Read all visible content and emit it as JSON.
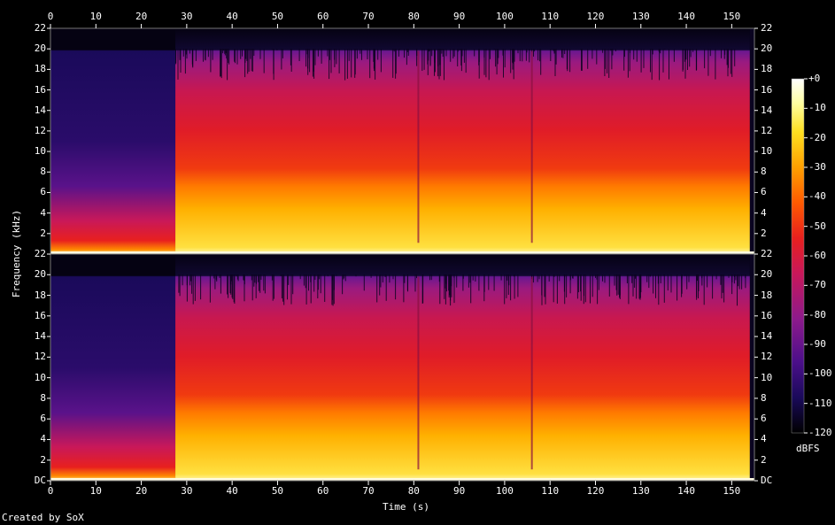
{
  "chart_data": {
    "type": "heatmap",
    "x": {
      "label": "Time (s)",
      "ticks": [
        0,
        10,
        20,
        30,
        40,
        50,
        60,
        70,
        80,
        90,
        100,
        110,
        120,
        130,
        140,
        150
      ],
      "range": [
        0,
        155
      ]
    },
    "y": {
      "label": "Frequency (kHz)",
      "ticks_top": [
        "22",
        "20",
        "18",
        "16",
        "14",
        "12",
        "10",
        "8",
        "6",
        "4",
        "2"
      ],
      "ticks_bottom": [
        "22",
        "20",
        "18",
        "16",
        "14",
        "12",
        "10",
        "8",
        "6",
        "4",
        "2",
        "DC"
      ],
      "range": [
        0,
        22
      ]
    },
    "channels": 2,
    "colorbar": {
      "label": "dBFS",
      "ticks": [
        "+0",
        "-10",
        "-20",
        "-30",
        "-40",
        "-50",
        "-60",
        "-70",
        "-80",
        "-90",
        "-100",
        "-110",
        "-120"
      ],
      "range": [
        -120,
        0
      ],
      "colors": [
        "#000000",
        "#1a0a5a",
        "#4b0f8a",
        "#8c1a8c",
        "#c8185a",
        "#e8201e",
        "#ff5a00",
        "#ffa000",
        "#ffe020",
        "#ffffa0",
        "#ffffff"
      ]
    }
  },
  "footer": {
    "credit": "Created by SoX"
  }
}
